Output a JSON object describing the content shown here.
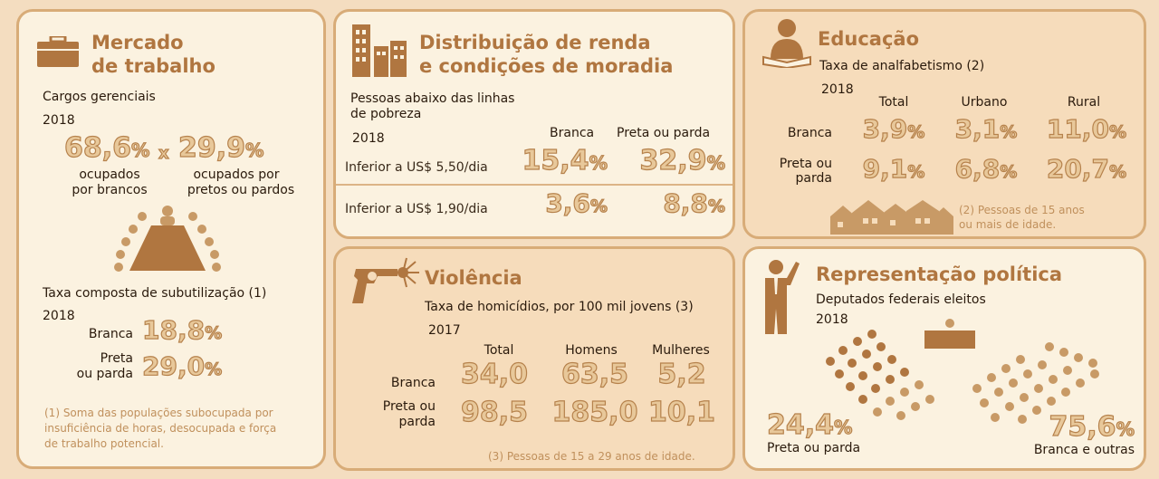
{
  "mercado": {
    "title_line1": "Mercado",
    "title_line2": "de trabalho",
    "icon": "briefcase-icon",
    "cargos_label": "Cargos gerenciais",
    "cargos_year": "2018",
    "value_brancos": "68,6",
    "value_pretos": "29,9",
    "pct": "%",
    "times": "x",
    "label_brancos_1": "ocupados",
    "label_brancos_2": "por brancos",
    "label_pretos_1": "ocupados por",
    "label_pretos_2": "pretos ou pardos",
    "subutil_label": "Taxa composta de subutilização (1)",
    "subutil_year": "2018",
    "branca_label": "Branca",
    "branca_value": "18,8",
    "preta_label_1": "Preta",
    "preta_label_2": "ou parda",
    "preta_value": "29,0",
    "note_1": "(1) Soma das populações subocupada por",
    "note_2": "insuficiência de horas, desocupada e força",
    "note_3": "de trabalho potencial."
  },
  "renda": {
    "title_line1": "Distribuição de renda",
    "title_line2": "e condições de moradia",
    "icon": "buildings-icon",
    "sub_1": "Pessoas abaixo das linhas",
    "sub_2": "de pobreza",
    "year": "2018",
    "col_branca": "Branca",
    "col_preta": "Preta ou parda",
    "row1_label": "Inferior a US$ 5,50/dia",
    "row1_branca": "15,4",
    "row1_preta": "32,9",
    "row2_label": "Inferior a US$ 1,90/dia",
    "row2_branca": "3,6",
    "row2_preta": "8,8",
    "pct": "%"
  },
  "educacao": {
    "title": "Educação",
    "icon": "reader-icon",
    "sub": "Taxa de analfabetismo (2)",
    "year": "2018",
    "col_total": "Total",
    "col_urbano": "Urbano",
    "col_rural": "Rural",
    "row1_label": "Branca",
    "row1": [
      "3,9",
      "3,1",
      "11,0"
    ],
    "row2_label_1": "Preta ou",
    "row2_label_2": "parda",
    "row2": [
      "9,1",
      "6,8",
      "20,7"
    ],
    "pct": "%",
    "note_1": "(2) Pessoas de 15 anos",
    "note_2": "ou mais de idade."
  },
  "violencia": {
    "title": "Violência",
    "icon": "revolver-icon",
    "sub": "Taxa de homicídios, por 100 mil jovens (3)",
    "year": "2017",
    "col_total": "Total",
    "col_homens": "Homens",
    "col_mulheres": "Mulheres",
    "row1_label": "Branca",
    "row1": [
      "34,0",
      "63,5",
      "5,2"
    ],
    "row2_label_1": "Preta ou",
    "row2_label_2": "parda",
    "row2": [
      "98,5",
      "185,0",
      "10,1"
    ],
    "note": "(3) Pessoas de 15 a 29 anos de idade."
  },
  "politica": {
    "title": "Representação política",
    "icon": "speaker-icon",
    "sub": "Deputados federais eleitos",
    "year": "2018",
    "preta_value": "24,4",
    "preta_label": "Preta ou parda",
    "branca_value": "75,6",
    "branca_label": "Branca e outras",
    "pct": "%"
  },
  "colors": {
    "background": "#f4ddc0",
    "panel_light": "#fbf2e0",
    "panel_tan": "#f6dcbb",
    "accent": "#b07640",
    "number_fill": "#e8c89a",
    "number_stroke": "#b6824c"
  }
}
